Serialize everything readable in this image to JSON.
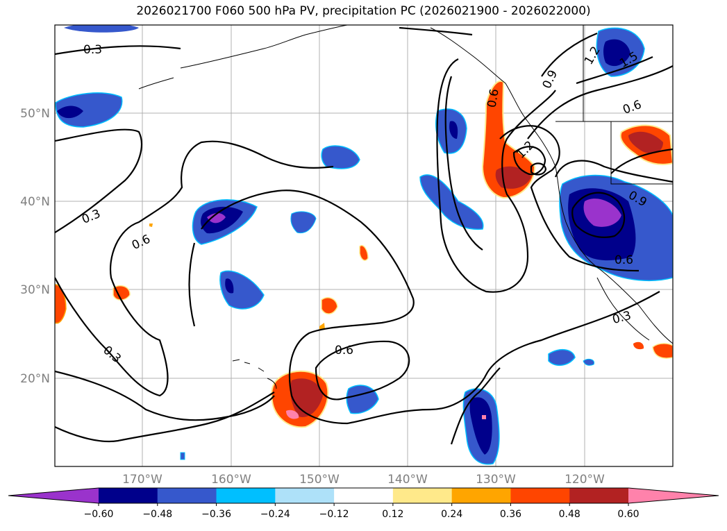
{
  "title": "2026021700 F060 500 hPa PV, precipitation PC (2026021900 - 2026022000)",
  "map": {
    "latitude_labels": [
      "50°N",
      "40°N",
      "30°N",
      "20°N"
    ],
    "longitude_labels": [
      "170°W",
      "160°W",
      "150°W",
      "140°W",
      "130°W",
      "120°W"
    ],
    "contour_labels": [
      "0.3",
      "0.3",
      "0.6",
      "0.3",
      "0.6",
      "0.9",
      "1.2",
      "1.2",
      "1.5",
      "0.6",
      "0.9",
      "0.6",
      "0.3",
      "0.6"
    ]
  },
  "colorbar": {
    "ticks": [
      "−0.60",
      "−0.48",
      "−0.36",
      "−0.24",
      "−0.12",
      "0.12",
      "0.24",
      "0.36",
      "0.48",
      "0.60"
    ],
    "colors": [
      "#9a33cc",
      "#00008b",
      "#3658cc",
      "#00bfff",
      "#aee1f9",
      "#ffffff",
      "#ffe98a",
      "#ffa500",
      "#ff4500",
      "#b22222",
      "#ff82ab"
    ]
  }
}
